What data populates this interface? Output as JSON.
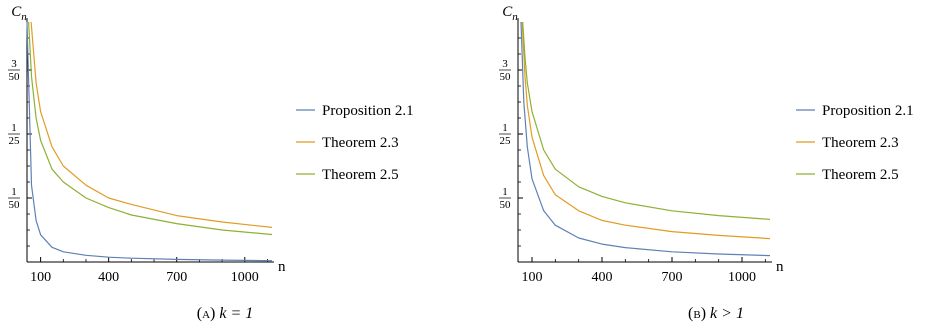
{
  "chart_data": [
    {
      "type": "line",
      "caption": "(A) k = 1",
      "caption_tag": "A",
      "caption_math": "k = 1",
      "ylabel": "C_n",
      "xlabel": "n",
      "x_ticks": [
        100,
        400,
        700,
        1000
      ],
      "y_ticks": [
        {
          "value": 0.02,
          "num": "1",
          "den": "50"
        },
        {
          "value": 0.04,
          "num": "1",
          "den": "25"
        },
        {
          "value": 0.06,
          "num": "3",
          "den": "50"
        }
      ],
      "xlim": [
        40,
        1120
      ],
      "ylim": [
        0,
        0.075
      ],
      "grid": false,
      "legend_position": "right",
      "series": [
        {
          "name": "Proposition 2.1",
          "color": "#5e81b5",
          "x": [
            40,
            60,
            80,
            100,
            150,
            200,
            300,
            400,
            500,
            700,
            900,
            1120
          ],
          "y": [
            0.075,
            0.024,
            0.013,
            0.0085,
            0.0046,
            0.0032,
            0.0021,
            0.0015,
            0.0012,
            0.0008,
            0.0006,
            0.0004
          ]
        },
        {
          "name": "Theorem 2.3",
          "color": "#e19c24",
          "x": [
            58,
            80,
            100,
            150,
            200,
            300,
            400,
            500,
            700,
            900,
            1120
          ],
          "y": [
            0.075,
            0.056,
            0.047,
            0.036,
            0.03,
            0.024,
            0.02,
            0.018,
            0.0145,
            0.0125,
            0.0108
          ]
        },
        {
          "name": "Theorem 2.5",
          "color": "#8fb032",
          "x": [
            47,
            60,
            80,
            100,
            150,
            200,
            300,
            400,
            500,
            700,
            900,
            1120
          ],
          "y": [
            0.075,
            0.058,
            0.045,
            0.038,
            0.029,
            0.025,
            0.02,
            0.017,
            0.0147,
            0.012,
            0.01,
            0.0086
          ]
        }
      ]
    },
    {
      "type": "line",
      "caption": "(B) k > 1",
      "caption_tag": "B",
      "caption_math": "k > 1",
      "ylabel": "C_n",
      "xlabel": "n",
      "x_ticks": [
        100,
        400,
        700,
        1000
      ],
      "y_ticks": [
        {
          "value": 0.02,
          "num": "1",
          "den": "50"
        },
        {
          "value": 0.04,
          "num": "1",
          "den": "25"
        },
        {
          "value": 0.06,
          "num": "3",
          "den": "50"
        }
      ],
      "xlim": [
        40,
        1120
      ],
      "ylim": [
        0,
        0.075
      ],
      "grid": false,
      "legend_position": "right",
      "series": [
        {
          "name": "Proposition 2.1",
          "color": "#5e81b5",
          "x": [
            53,
            65,
            80,
            100,
            150,
            200,
            300,
            400,
            500,
            700,
            900,
            1120
          ],
          "y": [
            0.075,
            0.05,
            0.036,
            0.026,
            0.016,
            0.0115,
            0.0075,
            0.0056,
            0.0045,
            0.0032,
            0.0025,
            0.002
          ]
        },
        {
          "name": "Theorem 2.3",
          "color": "#e19c24",
          "x": [
            58,
            70,
            80,
            100,
            150,
            200,
            300,
            400,
            500,
            700,
            900,
            1120
          ],
          "y": [
            0.075,
            0.058,
            0.049,
            0.039,
            0.027,
            0.021,
            0.016,
            0.013,
            0.0115,
            0.0095,
            0.0083,
            0.0073
          ]
        },
        {
          "name": "Theorem 2.5",
          "color": "#8fb032",
          "x": [
            60,
            70,
            80,
            100,
            150,
            200,
            300,
            400,
            500,
            700,
            900,
            1120
          ],
          "y": [
            0.075,
            0.064,
            0.056,
            0.047,
            0.035,
            0.029,
            0.0235,
            0.0205,
            0.0185,
            0.016,
            0.0145,
            0.0133
          ]
        }
      ]
    }
  ]
}
